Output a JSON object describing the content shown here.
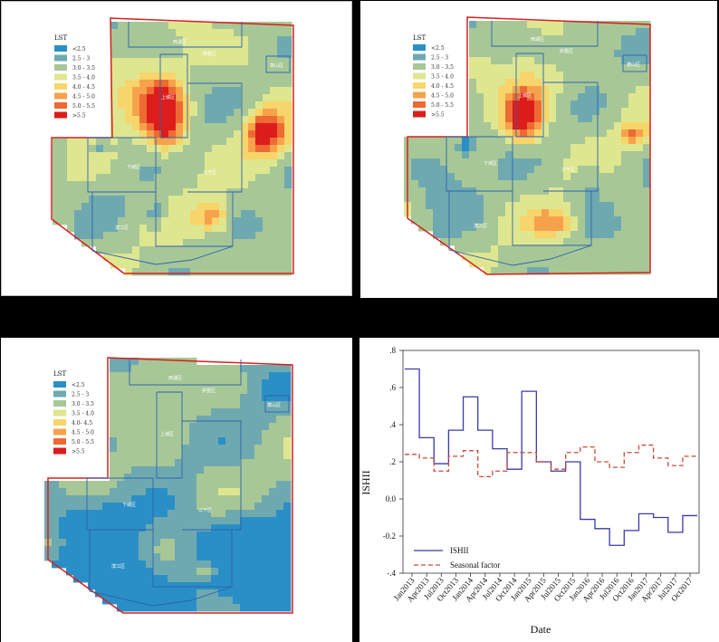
{
  "maps": [
    {
      "legend_title": "LST",
      "legend_items": [
        {
          "label": "<2.5",
          "color": "#2a8fc6"
        },
        {
          "label": "2.5 - 3",
          "color": "#6fa9b0"
        },
        {
          "label": "3.0 - 3.5",
          "color": "#a7c796"
        },
        {
          "label": "3.5 - 4.0",
          "color": "#dfe690"
        },
        {
          "label": "4.0 - 4.5",
          "color": "#f7d56a"
        },
        {
          "label": "4.5 - 5.0",
          "color": "#f6a24c"
        },
        {
          "label": "5.0 - 5.5",
          "color": "#ee6a33"
        },
        {
          "label": ">5.5",
          "color": "#dd1c1c"
        }
      ],
      "region_labels": [
        "西湖区",
        "拱墅区",
        "上城区",
        "下城区",
        "江干区",
        "滨江区",
        "萧山区"
      ]
    },
    {
      "legend_title": "LST",
      "legend_items": [
        {
          "label": "<2.5",
          "color": "#2a8fc6"
        },
        {
          "label": "2.5 - 3",
          "color": "#6fa9b0"
        },
        {
          "label": "3.0 - 3.5",
          "color": "#a7c796"
        },
        {
          "label": "3.5 - 4.0",
          "color": "#dfe690"
        },
        {
          "label": "4.0 - 4.5",
          "color": "#f7d56a"
        },
        {
          "label": "4.5 - 5.0",
          "color": "#f6a24c"
        },
        {
          "label": "5.0 - 5.5",
          "color": "#ee6a33"
        },
        {
          "label": ">5.5",
          "color": "#dd1c1c"
        }
      ],
      "region_labels": [
        "西湖区",
        "拱墅区",
        "上城区",
        "下城区",
        "江干区",
        "滨江区",
        "萧山区"
      ]
    },
    {
      "legend_title": "LST",
      "legend_items": [
        {
          "label": "<2.5",
          "color": "#2a8fc6"
        },
        {
          "label": "2.5 - 3",
          "color": "#6fa9b0"
        },
        {
          "label": "3.0 - 3.5",
          "color": "#a7c796"
        },
        {
          "label": "3.5 - 4.0",
          "color": "#dfe690"
        },
        {
          "label": "4.0- 4.5",
          "color": "#f7d56a"
        },
        {
          "label": "4.5 - 5.0",
          "color": "#f6a24c"
        },
        {
          "label": "5.0 - 5.5",
          "color": "#ee6a33"
        },
        {
          "label": ">5.5",
          "color": "#dd1c1c"
        }
      ],
      "region_labels": [
        "西湖区",
        "拱墅区",
        "上城区",
        "下城区",
        "江干区",
        "滨江区",
        "萧山区"
      ]
    }
  ],
  "chart_data": {
    "type": "line",
    "xlabel": "Date",
    "ylabel": "ISHII",
    "ylim": [
      -0.4,
      0.8
    ],
    "yticks": [
      ".8",
      ".6",
      ".4",
      ".2",
      "0.0",
      "-0.2",
      "-.4"
    ],
    "categories": [
      "Jan2013",
      "Apr2013",
      "Jul2013",
      "Oct2013",
      "Jan2014",
      "Apr2014",
      "Jul2014",
      "Oct2014",
      "Jan2015",
      "Apr2015",
      "Jul2015",
      "Oct2015",
      "Jan2016",
      "Apr2016",
      "Jul2016",
      "Oct2016",
      "Jan2017",
      "Apr2017",
      "Jul2017",
      "Oct2017"
    ],
    "series": [
      {
        "name": "ISHII",
        "color": "#3a3aa8",
        "style": "solid",
        "values": [
          0.7,
          0.33,
          0.19,
          0.37,
          0.55,
          0.37,
          0.27,
          0.16,
          0.58,
          0.2,
          0.15,
          0.2,
          -0.11,
          -0.16,
          -0.25,
          -0.17,
          -0.08,
          -0.1,
          -0.18,
          -0.09
        ]
      },
      {
        "name": "Seasonal factor",
        "color": "#c84a3a",
        "style": "dashed",
        "values": [
          0.24,
          0.22,
          0.15,
          0.23,
          0.26,
          0.12,
          0.15,
          0.25,
          0.25,
          0.2,
          0.16,
          0.25,
          0.28,
          0.2,
          0.17,
          0.25,
          0.29,
          0.22,
          0.18,
          0.23
        ]
      }
    ],
    "legend_position": "bottom-left"
  }
}
